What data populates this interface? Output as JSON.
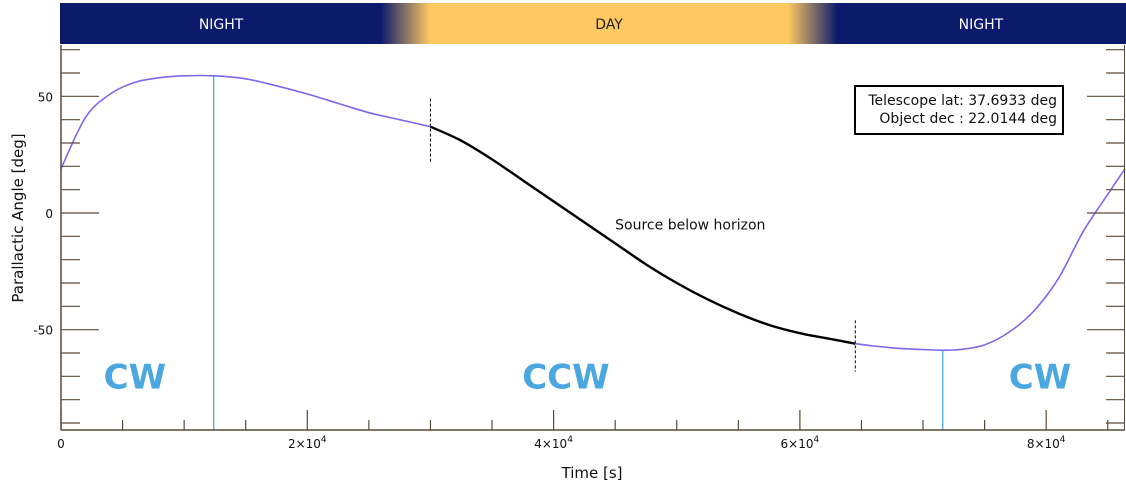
{
  "chart_data": {
    "type": "line",
    "xlabel": "Time [s]",
    "ylabel": "Parallactic Angle [deg]",
    "xlim": [
      0,
      86400
    ],
    "ylim": [
      -93,
      72
    ],
    "x_ticks": [
      {
        "value": 0,
        "label": "0"
      },
      {
        "value": 20000,
        "mantissa": "2×10",
        "exp": "4"
      },
      {
        "value": 40000,
        "mantissa": "4×10",
        "exp": "4"
      },
      {
        "value": 60000,
        "mantissa": "6×10",
        "exp": "4"
      },
      {
        "value": 80000,
        "mantissa": "8×10",
        "exp": "4"
      }
    ],
    "y_ticks": [
      50,
      0,
      -50
    ],
    "time_bands": [
      {
        "label": "NIGHT",
        "start": 0,
        "end": 26000,
        "kind": "night"
      },
      {
        "label": "DAY",
        "start": 30000,
        "end": 59000,
        "kind": "day"
      },
      {
        "label": "NIGHT",
        "start": 63000,
        "end": 86400,
        "kind": "night"
      }
    ],
    "series": [
      {
        "color": "#7b68ee",
        "x": [
          0,
          2000,
          4000,
          6000,
          8000,
          10000,
          12500,
          15000,
          17500,
          20000,
          22500,
          25000,
          27500,
          30000
        ],
        "y": [
          19,
          41,
          51,
          56,
          58,
          58.8,
          58.8,
          57.5,
          54.5,
          51,
          47,
          43,
          40,
          37
        ]
      },
      {
        "color": "#000000",
        "x": [
          30000,
          32500,
          35000,
          37500,
          40000,
          42500,
          45000,
          47500,
          50000,
          52500,
          55000,
          57500,
          60000,
          62500,
          64500
        ],
        "y": [
          37,
          31,
          23,
          14,
          5,
          -4,
          -13,
          -22,
          -30,
          -37,
          -43,
          -48,
          -51.5,
          -54,
          -56
        ]
      },
      {
        "color": "#7b68ee",
        "x": [
          64500,
          66000,
          68000,
          70000,
          71600,
          73000,
          75000,
          77000,
          79000,
          81000,
          83000,
          85000,
          86400
        ],
        "y": [
          -56,
          -57,
          -58,
          -58.5,
          -58.8,
          -58.5,
          -56.5,
          -51,
          -42,
          -28,
          -8,
          8,
          19
        ]
      }
    ],
    "rotation_markers": [
      {
        "x": 12400,
        "color": "#4aa7df"
      },
      {
        "x": 71600,
        "color": "#4aa7df"
      }
    ],
    "horizon_markers": [
      {
        "x": 30000,
        "y_from": 49,
        "y_to": 22
      },
      {
        "x": 64500,
        "y_from": -46,
        "y_to": -68
      }
    ],
    "annotation": {
      "text": "Source below horizon",
      "x": 45000,
      "y": -5
    },
    "rotation_labels": [
      {
        "text": "CW",
        "x": 6000,
        "y": -70
      },
      {
        "text": "CCW",
        "x": 41000,
        "y": -70
      },
      {
        "text": "CW",
        "x": 79500,
        "y": -70
      }
    ],
    "info_box": {
      "lines": [
        "Telescope lat: 37.6933 deg",
        "Object dec : 22.0144 deg"
      ]
    },
    "colors": {
      "night": "#0c1a6b",
      "day": "#fec862",
      "curve": "#7b68ee",
      "below_horizon_curve": "#000000",
      "rotation": "#4aa7df",
      "axis": "#5b4a36"
    }
  }
}
